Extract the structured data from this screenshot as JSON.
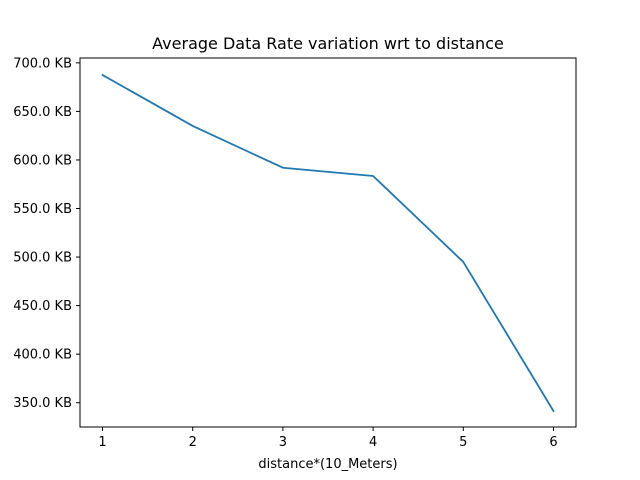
{
  "chart_data": {
    "type": "line",
    "title": "Average Data Rate variation wrt to distance",
    "xlabel": "distance*(10_Meters)",
    "ylabel": "",
    "x": [
      1,
      2,
      3,
      4,
      5,
      6
    ],
    "series": [
      {
        "values": [
          687.5,
          635.0,
          592.0,
          583.5,
          495.0,
          341.5
        ]
      }
    ],
    "xlim": [
      0.75,
      6.25
    ],
    "ylim": [
      325.0,
      705.0
    ],
    "xticks": [
      1,
      2,
      3,
      4,
      5,
      6
    ],
    "xtick_labels": [
      "1",
      "2",
      "3",
      "4",
      "5",
      "6"
    ],
    "yticks": [
      350,
      400,
      450,
      500,
      550,
      600,
      650,
      700
    ],
    "ytick_labels": [
      "350.0 KB",
      "400.0 KB",
      "450.0 KB",
      "500.0 KB",
      "550.0 KB",
      "600.0 KB",
      "650.0 KB",
      "700.0 KB"
    ],
    "line_color": "#1f77b4",
    "grid": false,
    "legend": "none"
  }
}
